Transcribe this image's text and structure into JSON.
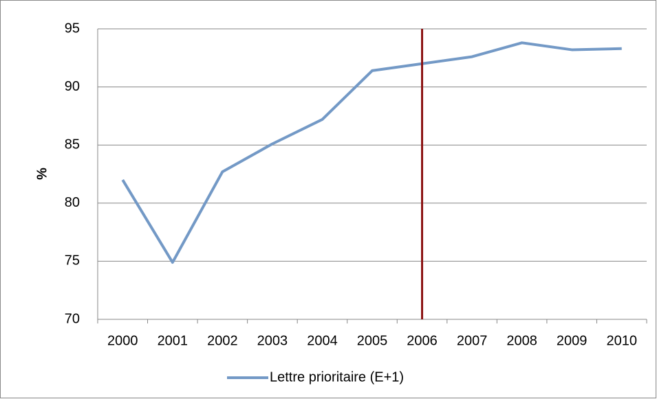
{
  "chart_data": {
    "type": "line",
    "y_label": "%",
    "categories": [
      "2000",
      "2001",
      "2002",
      "2003",
      "2004",
      "2005",
      "2006",
      "2007",
      "2008",
      "2009",
      "2010"
    ],
    "series": [
      {
        "name": "Lettre prioritaire (E+1)",
        "color": "#7399c6",
        "values": [
          82,
          74.9,
          82.7,
          85.1,
          87.2,
          91.4,
          92,
          92.6,
          93.8,
          93.2,
          93.3
        ]
      }
    ],
    "ylim": [
      70,
      95
    ],
    "yticks": [
      70,
      75,
      80,
      85,
      90,
      95
    ],
    "grid": true,
    "reference_line": {
      "category": "2006",
      "color": "#8b1212"
    },
    "legend": "bottom"
  }
}
